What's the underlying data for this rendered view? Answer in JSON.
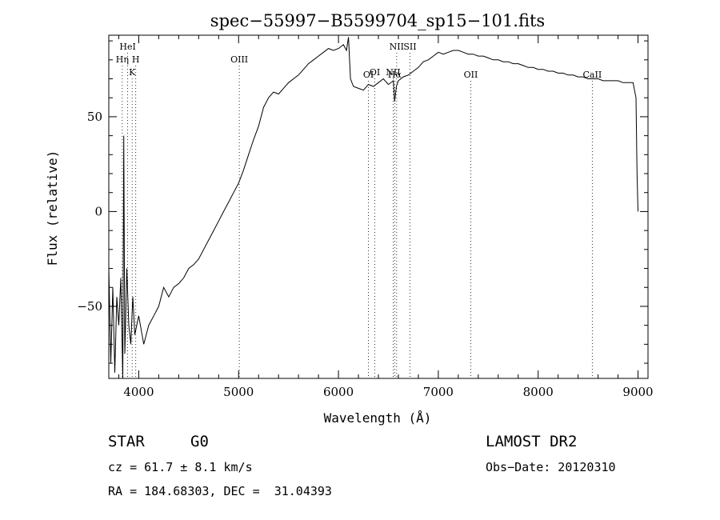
{
  "chart_data": {
    "type": "line",
    "title": "spec−55997−B5599704_sp15−101.fits",
    "xlabel": "Wavelength (Å)",
    "ylabel": "Flux (relative)",
    "xlim": [
      3700,
      9100
    ],
    "ylim": [
      -88,
      93
    ],
    "x_ticks": [
      4000,
      5000,
      6000,
      7000,
      8000,
      9000
    ],
    "y_ticks": [
      -50,
      0,
      50
    ],
    "grid": false,
    "line_color": "#000000",
    "series": [
      {
        "x": [
          3700,
          3720,
          3740,
          3760,
          3780,
          3800,
          3820,
          3840,
          3850,
          3860,
          3870,
          3880,
          3900,
          3920,
          3940,
          3960,
          3980,
          4000,
          4050,
          4100,
          4150,
          4200,
          4250,
          4300,
          4350,
          4400,
          4450,
          4500,
          4550,
          4600,
          4650,
          4700,
          4750,
          4800,
          4850,
          4900,
          4950,
          5000,
          5050,
          5100,
          5150,
          5200,
          5250,
          5300,
          5350,
          5400,
          5450,
          5500,
          5550,
          5600,
          5650,
          5700,
          5750,
          5800,
          5850,
          5900,
          5950,
          6000,
          6050,
          6080,
          6100,
          6120,
          6150,
          6200,
          6250,
          6300,
          6350,
          6400,
          6450,
          6500,
          6550,
          6563,
          6580,
          6600,
          6650,
          6700,
          6750,
          6800,
          6850,
          6900,
          6950,
          7000,
          7050,
          7100,
          7150,
          7200,
          7250,
          7300,
          7350,
          7400,
          7450,
          7500,
          7550,
          7600,
          7650,
          7700,
          7750,
          7800,
          7850,
          7900,
          7950,
          8000,
          8050,
          8100,
          8150,
          8200,
          8250,
          8300,
          8350,
          8400,
          8450,
          8500,
          8550,
          8600,
          8650,
          8700,
          8750,
          8800,
          8850,
          8900,
          8950,
          8980,
          8990,
          9000
        ],
        "y": [
          -30,
          -80,
          -40,
          -85,
          -45,
          -60,
          -35,
          -88,
          40,
          -75,
          -55,
          -30,
          -60,
          -70,
          -45,
          -65,
          -60,
          -55,
          -70,
          -60,
          -55,
          -50,
          -40,
          -45,
          -40,
          -38,
          -35,
          -30,
          -28,
          -25,
          -20,
          -15,
          -10,
          -5,
          0,
          5,
          10,
          15,
          22,
          30,
          38,
          45,
          55,
          60,
          63,
          62,
          65,
          68,
          70,
          72,
          75,
          78,
          80,
          82,
          84,
          86,
          85,
          86,
          88,
          85,
          92,
          70,
          66,
          65,
          64,
          67,
          66,
          68,
          70,
          67,
          69,
          58,
          66,
          69,
          71,
          72,
          74,
          76,
          79,
          80,
          82,
          84,
          83,
          84,
          85,
          85,
          84,
          83,
          83,
          82,
          82,
          81,
          80,
          80,
          79,
          79,
          78,
          78,
          77,
          76,
          76,
          75,
          75,
          74,
          74,
          73,
          73,
          72,
          72,
          71,
          71,
          70,
          70,
          70,
          69,
          69,
          69,
          69,
          68,
          68,
          68,
          60,
          20,
          0
        ]
      }
    ],
    "spectral_lines": [
      {
        "name": "HeI",
        "x": 3889,
        "row": 1
      },
      {
        "name": "Hη",
        "x": 3835,
        "row": 2
      },
      {
        "name": "H",
        "x": 3970,
        "row": 2
      },
      {
        "name": "K",
        "x": 3934,
        "row": 3
      },
      {
        "name": "OIII",
        "x": 5007,
        "row": 2
      },
      {
        "name": "OI",
        "x": 6300,
        "row": 4
      },
      {
        "name": "OI",
        "x": 6364,
        "row": 3
      },
      {
        "name": "NII",
        "x": 6548,
        "row": 3
      },
      {
        "name": "NII",
        "x": 6583,
        "row": 1
      },
      {
        "name": "Hα",
        "x": 6563,
        "row": 4
      },
      {
        "name": "SII",
        "x": 6716,
        "row": 1
      },
      {
        "name": "OII",
        "x": 7325,
        "row": 4
      },
      {
        "name": "CaII",
        "x": 8542,
        "row": 4
      }
    ]
  },
  "info": {
    "object_class": "STAR",
    "subclass": "G0",
    "survey": "LAMOST DR2",
    "redshift": "cz = 61.7 ± 8.1 km/s",
    "obs_date": "Obs−Date: 20120310",
    "coords": "RA = 184.68303, DEC =  31.04393"
  }
}
